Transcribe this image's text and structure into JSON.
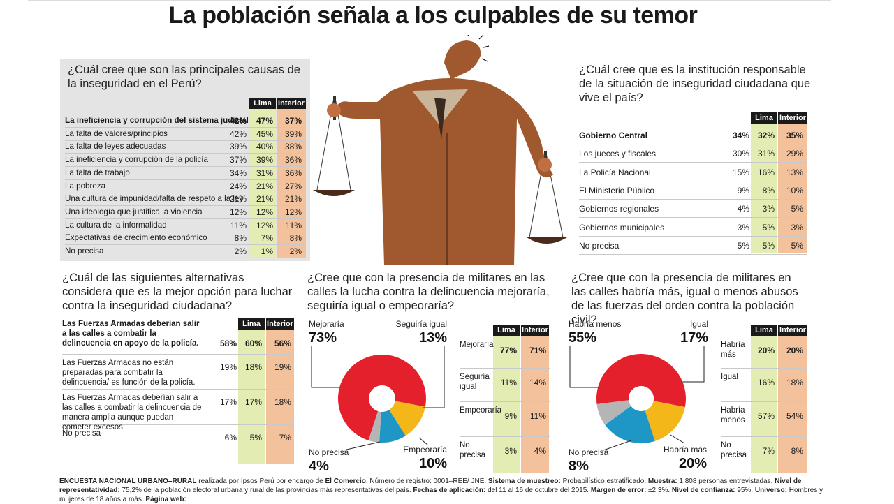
{
  "title": "La población señala a los culpables de su temor",
  "q1": {
    "question": "¿Cuál cree que son las principales causas de la inseguridad en el Perú?",
    "col_lima": "Lima",
    "col_interior": "Interior",
    "rows": [
      {
        "label": "La ineficiencia y corrupción del sistema judicial",
        "total": "42%",
        "lima": "47%",
        "interior": "37%"
      },
      {
        "label": "La falta de valores/principios",
        "total": "42%",
        "lima": "45%",
        "interior": "39%"
      },
      {
        "label": "La falta de leyes adecuadas",
        "total": "39%",
        "lima": "40%",
        "interior": "38%"
      },
      {
        "label": "La ineficiencia y corrupción de la policía",
        "total": "37%",
        "lima": "39%",
        "interior": "36%"
      },
      {
        "label": "La falta de trabajo",
        "total": "34%",
        "lima": "31%",
        "interior": "36%"
      },
      {
        "label": "La pobreza",
        "total": "24%",
        "lima": "21%",
        "interior": "27%"
      },
      {
        "label": "Una cultura de impunidad/falta de respeto a la ley",
        "total": "21%",
        "lima": "21%",
        "interior": "21%"
      },
      {
        "label": "Una ideología que justifica la violencia",
        "total": "12%",
        "lima": "12%",
        "interior": "12%"
      },
      {
        "label": "La cultura de la informalidad",
        "total": "11%",
        "lima": "12%",
        "interior": "11%"
      },
      {
        "label": "Expectativas de crecimiento económico",
        "total": "8%",
        "lima": "7%",
        "interior": "8%"
      },
      {
        "label": "No precisa",
        "total": "2%",
        "lima": "1%",
        "interior": "2%"
      }
    ]
  },
  "q2": {
    "question": "¿Cuál cree que es la institución responsable de la situación de inseguridad ciudadana que vive el país?",
    "col_lima": "Lima",
    "col_interior": "Interior",
    "rows": [
      {
        "label": "Gobierno Central",
        "total": "34%",
        "lima": "32%",
        "interior": "35%"
      },
      {
        "label": "Los jueces y fiscales",
        "total": "30%",
        "lima": "31%",
        "interior": "29%"
      },
      {
        "label": "La Policía Nacional",
        "total": "15%",
        "lima": "16%",
        "interior": "13%"
      },
      {
        "label": "El Ministerio Público",
        "total": "9%",
        "lima": "8%",
        "interior": "10%"
      },
      {
        "label": "Gobiernos regionales",
        "total": "4%",
        "lima": "3%",
        "interior": "5%"
      },
      {
        "label": "Gobiernos municipales",
        "total": "3%",
        "lima": "5%",
        "interior": "3%"
      },
      {
        "label": "No precisa",
        "total": "5%",
        "lima": "5%",
        "interior": "5%"
      }
    ]
  },
  "q3": {
    "question": "¿Cuál de las siguientes alternativas considera que es la mejor opción para luchar contra la inseguridad ciudadana?",
    "col_lima": "Lima",
    "col_interior": "Interior",
    "rows": [
      {
        "label": "Las Fuerzas Armadas deberían salir a las calles a combatir la delincuencia en apoyo de la policía.",
        "total": "58%",
        "lima": "60%",
        "interior": "56%"
      },
      {
        "label": "Las Fuerzas Armadas no están preparadas para combatir la delincuencia/ es función de la policía.",
        "total": "19%",
        "lima": "18%",
        "interior": "19%"
      },
      {
        "label": "Las Fuerzas Armadas deberían salir a las calles a combatir la delincuencia de manera amplia aunque puedan cometer excesos.",
        "total": "17%",
        "lima": "17%",
        "interior": "18%"
      },
      {
        "label": "No precisa",
        "total": "6%",
        "lima": "5%",
        "interior": "7%"
      }
    ]
  },
  "q4": {
    "question": "¿Cree que con la presencia de militares en las calles la lucha contra la delincuencia mejoraría, seguiría igual o empeoraría?",
    "col_lima": "Lima",
    "col_interior": "Interior",
    "table": [
      {
        "label": "Mejoraría",
        "lima": "77%",
        "interior": "71%"
      },
      {
        "label": "Seguiría igual",
        "lima": "11%",
        "interior": "14%"
      },
      {
        "label": "Empeoraría",
        "lima": "9%",
        "interior": "11%"
      },
      {
        "label": "No precisa",
        "lima": "3%",
        "interior": "4%"
      }
    ]
  },
  "q5": {
    "question": "¿Cree que con la presencia de militares en las calles habría más, igual o menos abusos de las fuerzas del orden contra la población civil?",
    "col_lima": "Lima",
    "col_interior": "Interior",
    "table": [
      {
        "label": "Habría más",
        "lima": "20%",
        "interior": "20%"
      },
      {
        "label": "Igual",
        "lima": "16%",
        "interior": "18%"
      },
      {
        "label": "Habría menos",
        "lima": "57%",
        "interior": "54%"
      },
      {
        "label": "No precisa",
        "lima": "7%",
        "interior": "8%"
      }
    ]
  },
  "chart_data": [
    {
      "type": "pie",
      "labels": [
        "Mejoraría",
        "Seguiría igual",
        "Empeoraría",
        "No precisa"
      ],
      "values": [
        73,
        13,
        10,
        4
      ],
      "value_labels": [
        "73%",
        "13%",
        "10%",
        "4%"
      ],
      "colors": [
        "#e3202b",
        "#f4b71a",
        "#1f97c6",
        "#b5b5b5"
      ]
    },
    {
      "type": "pie",
      "labels": [
        "Habría menos",
        "Igual",
        "Habría más",
        "No precisa"
      ],
      "values": [
        55,
        17,
        20,
        8
      ],
      "value_labels": [
        "55%",
        "17%",
        "20%",
        "8%"
      ],
      "colors": [
        "#e3202b",
        "#f4b71a",
        "#1f97c6",
        "#b5b5b5"
      ]
    }
  ],
  "footer": {
    "t1": "ENCUESTA NACIONAL URBANO–RURAL",
    "t2": " realizada por Ipsos Perú por encargo de ",
    "t3": "El Comercio",
    "t4": ". Número de registro: 0001–REE/ JNE. ",
    "t5": "Sistema de muestreo:",
    "t6": " Probabilístico estratificado. ",
    "t7": "Muestra:",
    "t8": " 1.808 personas entrevistadas. ",
    "t9": "Nivel de representatividad:",
    "t10": " 75,2% de la población electoral urbana y rural de las provincias más representativas del país. ",
    "t11": "Fechas de aplicación:",
    "t12": " del 11 al 16 de octubre del 2015. ",
    "t13": "Margen de error:",
    "t14": " ±2,3%. ",
    "t15": "Nivel de confianza:",
    "t16": " 95%. ",
    "t17": "Universo:",
    "t18": " Hombres y mujeres de 18 años a más. ",
    "t19": "Página web:"
  }
}
